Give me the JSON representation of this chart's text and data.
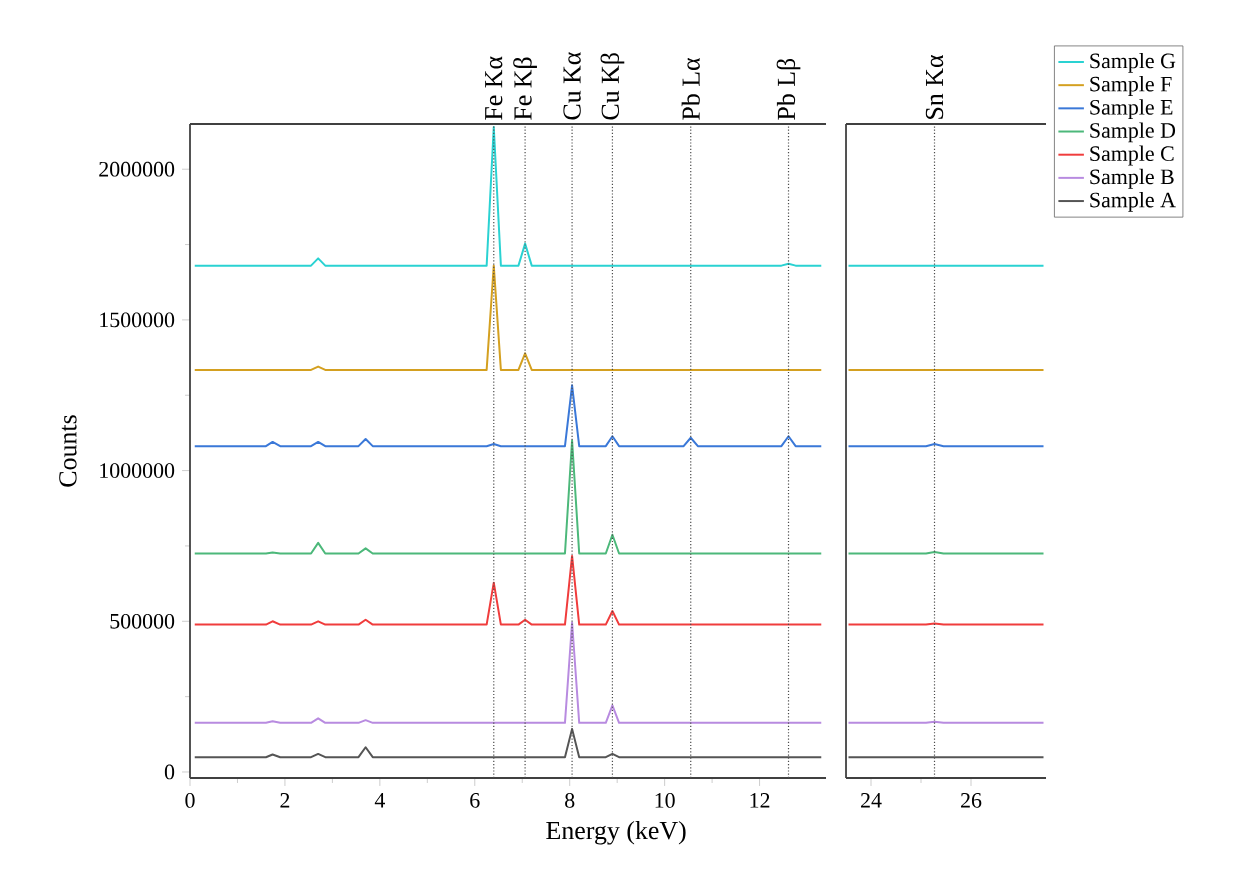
{
  "chart_data": [
    {
      "type": "line",
      "xlabel": "Energy (keV)",
      "ylabel": "Counts",
      "xlim": [
        0,
        13.4
      ],
      "ylim": [
        -20000,
        2150000
      ],
      "xticks": [
        0,
        2,
        4,
        6,
        8,
        10,
        12
      ],
      "yticks": [
        0,
        500000,
        1000000,
        1500000,
        2000000
      ],
      "x": [
        0.1,
        1.6,
        1.74,
        1.9,
        2.55,
        2.7,
        2.85,
        3.55,
        3.7,
        3.85,
        6.25,
        6.4,
        6.55,
        6.92,
        7.06,
        7.2,
        7.9,
        8.05,
        8.2,
        8.76,
        8.9,
        9.04,
        10.4,
        10.55,
        10.7,
        12.46,
        12.61,
        12.76,
        13.3
      ],
      "series": [
        {
          "color": "#2ad2d2",
          "values": [
            1680000,
            1680000,
            1680000,
            1680000,
            1680000,
            1704000,
            1680000,
            1680000,
            1680000,
            1680000,
            1680000,
            2140000,
            1680000,
            1680000,
            1753000,
            1680000,
            1680000,
            1680000,
            1680000,
            1680000,
            1680000,
            1680000,
            1680000,
            1680000,
            1680000,
            1680000,
            1686000,
            1680000,
            1680000
          ]
        },
        {
          "color": "#d4a020",
          "values": [
            1334000,
            1334000,
            1334000,
            1334000,
            1334000,
            1345000,
            1334000,
            1334000,
            1334000,
            1334000,
            1334000,
            1680000,
            1334000,
            1334000,
            1389000,
            1334000,
            1334000,
            1334000,
            1334000,
            1334000,
            1334000,
            1334000,
            1334000,
            1334000,
            1334000,
            1334000,
            1334000,
            1334000,
            1334000
          ]
        },
        {
          "color": "#3a78d8",
          "values": [
            1081000,
            1081000,
            1095000,
            1081000,
            1081000,
            1095000,
            1081000,
            1081000,
            1105000,
            1081000,
            1081000,
            1088000,
            1081000,
            1081000,
            1081000,
            1081000,
            1081000,
            1283000,
            1081000,
            1081000,
            1114000,
            1081000,
            1081000,
            1109000,
            1081000,
            1081000,
            1114000,
            1081000,
            1081000
          ]
        },
        {
          "color": "#4cb87a",
          "values": [
            725000,
            725000,
            728000,
            725000,
            725000,
            760000,
            725000,
            725000,
            742000,
            725000,
            725000,
            725000,
            725000,
            725000,
            725000,
            725000,
            725000,
            1100000,
            725000,
            725000,
            787000,
            725000,
            725000,
            725000,
            725000,
            725000,
            725000,
            725000,
            725000
          ]
        },
        {
          "color": "#f03c3c",
          "values": [
            489000,
            489000,
            500000,
            489000,
            489000,
            500000,
            489000,
            489000,
            505000,
            489000,
            489000,
            628000,
            489000,
            489000,
            505000,
            489000,
            489000,
            717000,
            489000,
            489000,
            534000,
            489000,
            489000,
            489000,
            489000,
            489000,
            489000,
            489000,
            489000
          ]
        },
        {
          "color": "#b88be0",
          "values": [
            163000,
            163000,
            168000,
            163000,
            163000,
            178000,
            163000,
            163000,
            172000,
            163000,
            163000,
            163000,
            163000,
            163000,
            163000,
            163000,
            163000,
            496000,
            163000,
            163000,
            221000,
            163000,
            163000,
            163000,
            163000,
            163000,
            163000,
            163000,
            163000
          ]
        },
        {
          "color": "#555555",
          "values": [
            49000,
            49000,
            58000,
            49000,
            49000,
            60000,
            49000,
            49000,
            82000,
            49000,
            49000,
            49000,
            49000,
            49000,
            49000,
            49000,
            49000,
            143000,
            49000,
            49000,
            60000,
            49000,
            49000,
            49000,
            49000,
            49000,
            49000,
            49000,
            49000
          ]
        }
      ],
      "ref_lines": [
        {
          "axis": "x",
          "value": 6.4,
          "label": "Fe Kα",
          "line_style": "dotted"
        },
        {
          "axis": "x",
          "value": 7.06,
          "label": "Fe Kβ",
          "line_style": "dotted"
        },
        {
          "axis": "x",
          "value": 8.05,
          "label": "Cu Kα",
          "line_style": "dotted"
        },
        {
          "axis": "x",
          "value": 8.9,
          "label": "Cu Kβ",
          "line_style": "dotted"
        },
        {
          "axis": "x",
          "value": 10.55,
          "label": "Pb Lα",
          "line_style": "dotted"
        },
        {
          "axis": "x",
          "value": 12.61,
          "label": "Pb Lβ",
          "line_style": "dotted"
        }
      ]
    },
    {
      "type": "line",
      "xlim": [
        23.5,
        27.5
      ],
      "ylim": [
        -20000,
        2150000
      ],
      "xticks": [
        24,
        26
      ],
      "tick_labels": "x",
      "legend": "top right",
      "x": [
        23.55,
        25.1,
        25.27,
        25.45,
        27.45
      ],
      "series": [
        {
          "name": "Sample G",
          "color": "#2ad2d2",
          "values": [
            1680000,
            1680000,
            1680000,
            1680000,
            1680000
          ]
        },
        {
          "name": "Sample F",
          "color": "#d4a020",
          "values": [
            1334000,
            1334000,
            1334000,
            1334000,
            1334000
          ]
        },
        {
          "name": "Sample E",
          "color": "#3a78d8",
          "values": [
            1081000,
            1081000,
            1088000,
            1081000,
            1081000
          ]
        },
        {
          "name": "Sample D",
          "color": "#4cb87a",
          "values": [
            725000,
            725000,
            730000,
            725000,
            725000
          ]
        },
        {
          "name": "Sample C",
          "color": "#f03c3c",
          "values": [
            489000,
            489000,
            493000,
            489000,
            489000
          ]
        },
        {
          "name": "Sample B",
          "color": "#b88be0",
          "values": [
            163000,
            163000,
            167000,
            163000,
            163000
          ]
        },
        {
          "name": "Sample A",
          "color": "#555555",
          "values": [
            49000,
            49000,
            49000,
            49000,
            49000
          ]
        }
      ],
      "ref_lines": [
        {
          "axis": "x",
          "value": 25.27,
          "label": "Sn Kα",
          "line_style": "dotted"
        }
      ]
    }
  ]
}
